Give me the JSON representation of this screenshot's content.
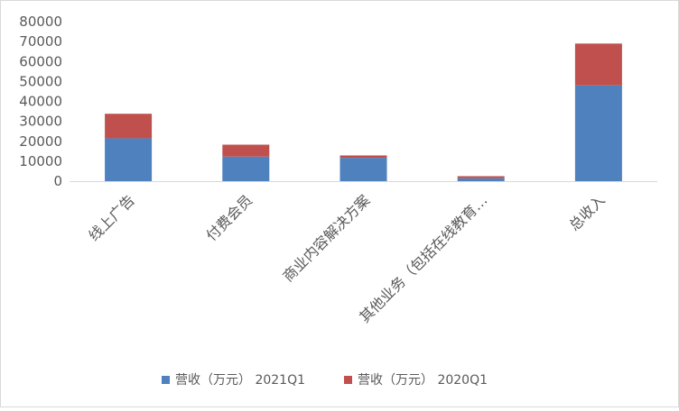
{
  "chart_data": {
    "type": "bar",
    "stacked": true,
    "categories": [
      "线上广告",
      "付费会员",
      "商业内容解决方案",
      "其他业务（包括在线教育…",
      "总收入"
    ],
    "series": [
      {
        "name": "营收（万元） 2021Q1",
        "color": "#4e81bd",
        "values": [
          21500,
          12300,
          11700,
          1500,
          48000
        ]
      },
      {
        "name": "营收（万元） 2020Q1",
        "color": "#c0504d",
        "values": [
          12300,
          6000,
          1200,
          1000,
          21000
        ]
      }
    ],
    "ylim": [
      0,
      80000
    ],
    "yticks": [
      0,
      10000,
      20000,
      30000,
      40000,
      50000,
      60000,
      70000,
      80000
    ],
    "grid": false,
    "legend_position": "bottom"
  }
}
